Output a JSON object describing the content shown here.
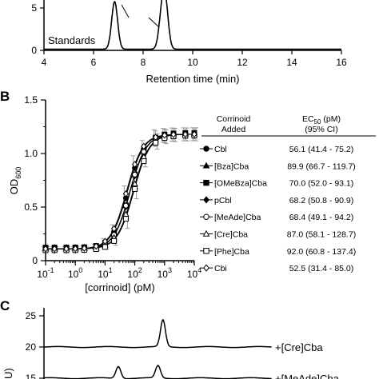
{
  "chart_data": [
    {
      "panel": "",
      "type": "line",
      "xlabel": "Retention time (min)",
      "ylabel": "",
      "xlim": [
        4,
        16
      ],
      "x_ticks": [
        "4",
        "6",
        "8",
        "10",
        "12",
        "14",
        "16"
      ],
      "y_ticks": [
        "0",
        "5"
      ],
      "trace_label": "Standards",
      "peaks": [
        {
          "x": 6.85,
          "height": 5.6,
          "width": 0.12
        },
        {
          "x": 8.75,
          "height": 3.5,
          "width": 0.12
        },
        {
          "x": 8.9,
          "height": 5.0,
          "width": 0.12
        }
      ]
    },
    {
      "panel": "B",
      "type": "line",
      "xlabel": "[corrinoid] (pM)",
      "ylabel": "OD600",
      "ylabel_main": "OD",
      "ylabel_sub": "600",
      "xscale": "log",
      "xlim": [
        0.1,
        10000
      ],
      "ylim": [
        0,
        1.5
      ],
      "x_ticks": [
        {
          "value": 0.1,
          "base": "10",
          "exp": "-1"
        },
        {
          "value": 1,
          "base": "10",
          "exp": "0"
        },
        {
          "value": 10,
          "base": "10",
          "exp": "1"
        },
        {
          "value": 100,
          "base": "10",
          "exp": "2"
        },
        {
          "value": 1000,
          "base": "10",
          "exp": "3"
        },
        {
          "value": 10000,
          "base": "10",
          "exp": "4"
        }
      ],
      "y_ticks": [
        {
          "value": 0,
          "label": "0"
        },
        {
          "value": 0.5,
          "label": "0.5"
        },
        {
          "value": 1,
          "label": "1.0"
        },
        {
          "value": 1.5,
          "label": "1.5"
        }
      ],
      "x": [
        0.1,
        0.2,
        0.5,
        1,
        2,
        5,
        10,
        20,
        50,
        100,
        200,
        500,
        1000,
        2000,
        5000,
        10000
      ],
      "legend_header_col1": [
        "Corrinoid",
        "Added"
      ],
      "legend_header_col2_main": "EC",
      "legend_header_col2_sub": "50",
      "legend_header_col2_unit": " (pM)",
      "legend_header_col2_line2": "(95% CI)",
      "series": [
        {
          "name": "Cbl",
          "marker": "circle-filled",
          "ec50_label": "56.1 (41.4 - 75.2)",
          "ec50": 56.1
        },
        {
          "name": "[Bza]Cba",
          "marker": "triangle-filled",
          "ec50_label": "89.9 (66.7 - 119.7)",
          "ec50": 89.9
        },
        {
          "name": "[OMeBza]Cba",
          "marker": "square-filled",
          "ec50_label": "70.0 (52.0 - 93.1)",
          "ec50": 70.0
        },
        {
          "name": "pCbl",
          "marker": "diamond-filled",
          "ec50_label": "68.2 (50.8 - 90.9)",
          "ec50": 68.2
        },
        {
          "name": "[MeAde]Cba",
          "marker": "circle-open",
          "ec50_label": "68.4 (49.1 - 94.2)",
          "ec50": 68.4
        },
        {
          "name": "[Cre]Cba",
          "marker": "triangle-open",
          "ec50_label": "87.0 (58.1 - 128.7)",
          "ec50": 87.0
        },
        {
          "name": "[Phe]Cba",
          "marker": "square-open",
          "ec50_label": "92.0 (60.8 - 137.4)",
          "ec50": 92.0
        },
        {
          "name": "Cbi",
          "marker": "diamond-open",
          "ec50_label": "52.5 (31.4 - 85.0)",
          "ec50": 52.5
        }
      ],
      "curve": {
        "bottom": 0.11,
        "top": 1.18,
        "hill": 1.6
      }
    },
    {
      "panel": "C",
      "type": "line",
      "xlabel": "",
      "ylabel": "",
      "ylabel_partial": "U)",
      "y_ticks": [
        {
          "value": 15,
          "label": "15"
        },
        {
          "value": 20,
          "label": "20"
        },
        {
          "value": 25,
          "label": "25"
        }
      ],
      "traces": [
        {
          "label": "+[Cre]Cba",
          "baseline": 20.0,
          "peaks": [
            {
              "x": 8.8,
              "height": 4.3
            }
          ]
        },
        {
          "label": "+[MeAde]Cba",
          "baseline": 15.0,
          "peaks": [
            {
              "x": 7.0,
              "height": 1.9
            },
            {
              "x": 8.6,
              "height": 2.0
            }
          ]
        }
      ]
    }
  ]
}
